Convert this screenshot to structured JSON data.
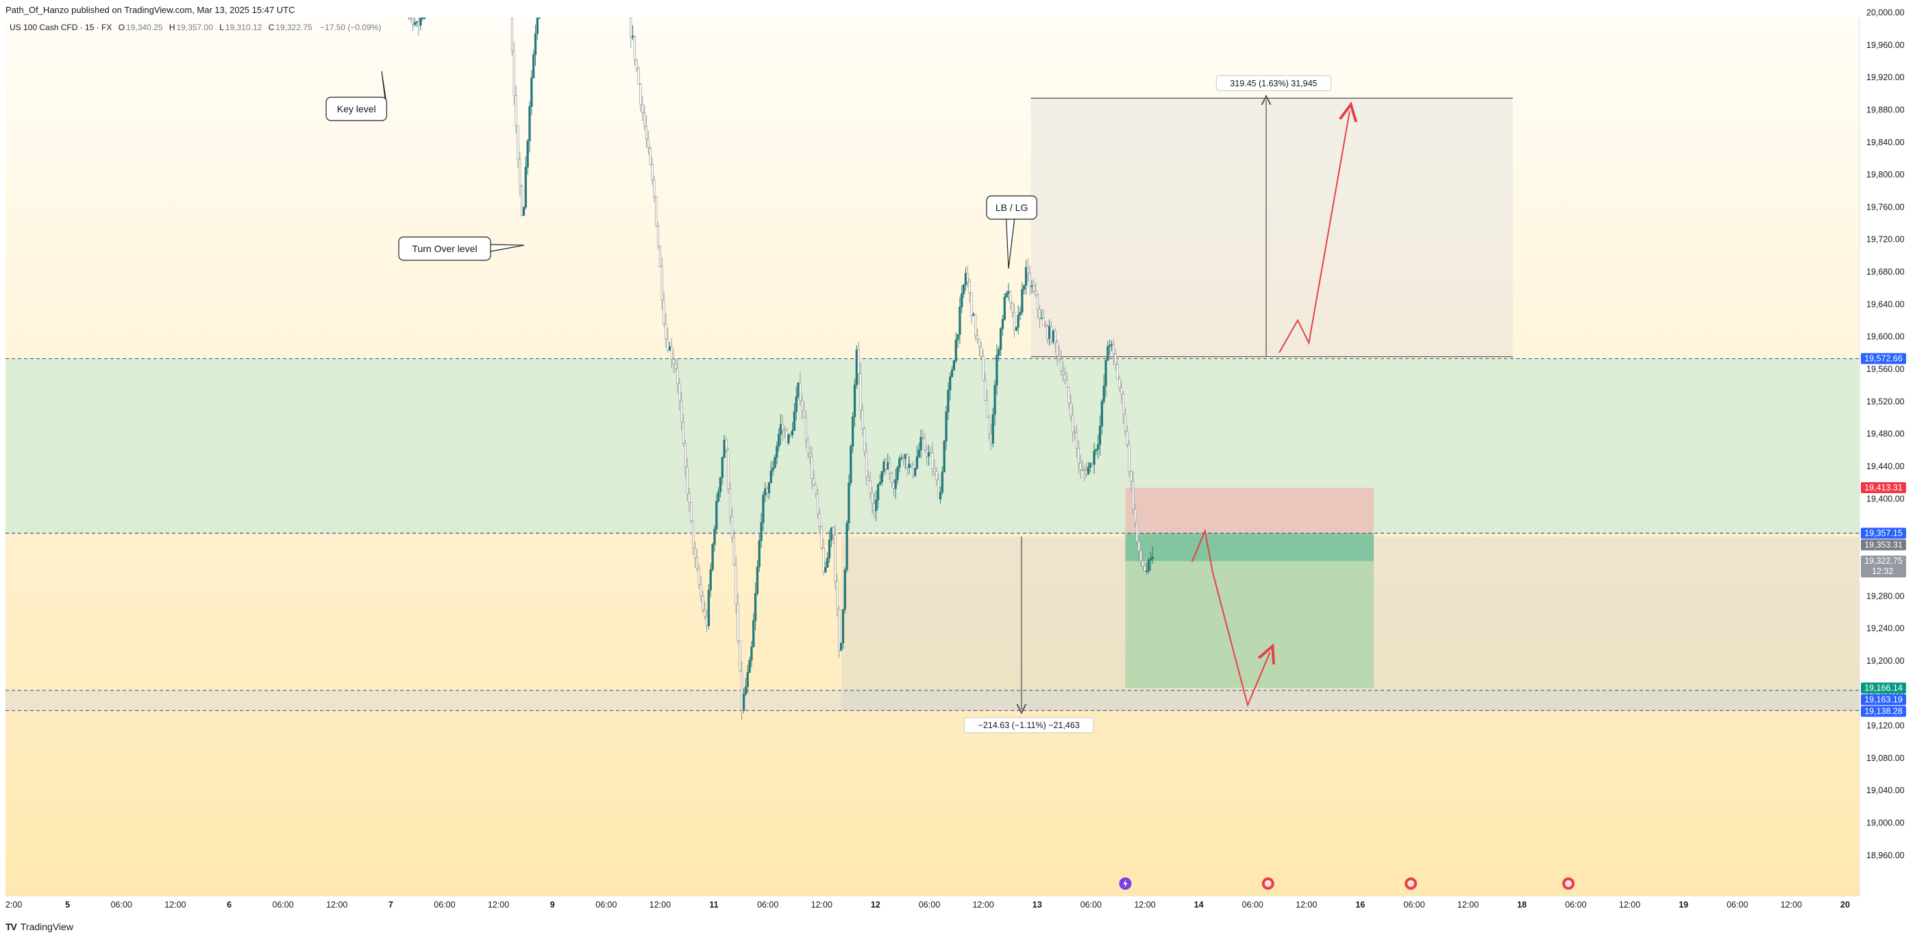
{
  "header": {
    "text": "Path_Of_Hanzo published on TradingView.com, Mar 13, 2025 15:47 UTC"
  },
  "legend": {
    "symbol": "US 100 Cash CFD · 15 · FX",
    "open_label": "O",
    "open": "19,340.25",
    "high_label": "H",
    "high": "19,357.00",
    "low_label": "L",
    "low": "19,310.12",
    "close_label": "C",
    "close": "19,322.75",
    "change": "−17.50 (−0.09%)"
  },
  "footer": {
    "brand": "TradingView",
    "logo": "TV"
  },
  "colors": {
    "bg_top": "#fffaf0",
    "bg_bottom": "#ffe9b8",
    "green_zone": "#d7ecd6",
    "candle_up": "#26787a",
    "candle_down": "#9a9a9a",
    "arrow": "#e8404a",
    "label_blue": "#2962ff",
    "label_red": "#f23645",
    "label_green": "#089981",
    "label_gray": "#787b86"
  },
  "chart_data": {
    "type": "candlestick",
    "y_range": [
      18940,
      20040
    ],
    "y_ticks": [
      "20,000.00",
      "19,960.00",
      "19,920.00",
      "19,880.00",
      "19,840.00",
      "19,800.00",
      "19,760.00",
      "19,720.00",
      "19,680.00",
      "19,640.00",
      "19,600.00",
      "19,560.00",
      "19,520.00",
      "19,480.00",
      "19,440.00",
      "19,400.00",
      "19,360.00",
      "19,320.00",
      "19,280.00",
      "19,240.00",
      "19,200.00",
      "19,160.00",
      "19,120.00",
      "19,080.00",
      "19,040.00",
      "19,000.00",
      "18,960.00"
    ],
    "x_ticks": [
      "2:00",
      "5",
      "06:00",
      "12:00",
      "6",
      "06:00",
      "12:00",
      "7",
      "06:00",
      "12:00",
      "9",
      "06:00",
      "12:00",
      "11",
      "06:00",
      "12:00",
      "12",
      "06:00",
      "12:00",
      "13",
      "06:00",
      "12:00",
      "14",
      "06:00",
      "12:00",
      "16",
      "06:00",
      "12:00",
      "18",
      "06:00",
      "12:00",
      "19",
      "06:00",
      "12:00",
      "20"
    ],
    "price_labels": [
      {
        "text": "19,572.66",
        "value": 19572.66,
        "color": "#2962ff"
      },
      {
        "text": "19,413.31",
        "value": 19413.31,
        "color": "#f23645"
      },
      {
        "text": "19,357.15",
        "value": 19357.15,
        "color": "#2962ff"
      },
      {
        "text": "19,353.31",
        "value": 19353.31,
        "color": "#787b86"
      },
      {
        "text": "19,322.75",
        "sub": "12:32",
        "value": 19322.75,
        "color": "#9598a1"
      },
      {
        "text": "19,166.14",
        "value": 19166.14,
        "color": "#089981"
      },
      {
        "text": "19,163.19",
        "value": 19163.19,
        "color": "#2962ff"
      },
      {
        "text": "19,138.28",
        "value": 19138.28,
        "color": "#2962ff"
      }
    ],
    "zones": [
      {
        "name": "demand-zone",
        "top": 19572.66,
        "bottom": 19357.15
      },
      {
        "name": "low-zone",
        "top": 19163.19,
        "bottom": 19138.28
      }
    ],
    "horizontal_lines": [
      19572.66,
      19357.15,
      19163.19,
      19138.28
    ],
    "measure_up": {
      "text": "319.45 (1.63%) 31,945",
      "from": 19575,
      "to": 19894
    },
    "measure_down": {
      "text": "−214.63 (−1.11%) −21,463",
      "from": 19353,
      "to": 19138
    },
    "position": {
      "entry": 19357.15,
      "stop": 19413.31,
      "target": 19166.14
    },
    "callouts": [
      {
        "text": "Key level"
      },
      {
        "text": "Turn Over level"
      },
      {
        "text": "LB / LG"
      }
    ],
    "candle_path": [
      [
        0.205,
        20200
      ],
      [
        0.213,
        20030
      ],
      [
        0.222,
        19980
      ],
      [
        0.232,
        20060
      ],
      [
        0.265,
        20150
      ],
      [
        0.272,
        20020
      ],
      [
        0.276,
        19820
      ],
      [
        0.279,
        19745
      ],
      [
        0.283,
        19900
      ],
      [
        0.287,
        20010
      ],
      [
        0.295,
        20060
      ],
      [
        0.332,
        20030
      ],
      [
        0.338,
        19970
      ],
      [
        0.344,
        19870
      ],
      [
        0.35,
        19770
      ],
      [
        0.356,
        19600
      ],
      [
        0.362,
        19560
      ],
      [
        0.366,
        19450
      ],
      [
        0.372,
        19320
      ],
      [
        0.378,
        19240
      ],
      [
        0.382,
        19360
      ],
      [
        0.388,
        19480
      ],
      [
        0.393,
        19310
      ],
      [
        0.397,
        19140
      ],
      [
        0.402,
        19200
      ],
      [
        0.408,
        19390
      ],
      [
        0.413,
        19430
      ],
      [
        0.418,
        19490
      ],
      [
        0.423,
        19470
      ],
      [
        0.428,
        19540
      ],
      [
        0.433,
        19460
      ],
      [
        0.437,
        19400
      ],
      [
        0.442,
        19300
      ],
      [
        0.446,
        19380
      ],
      [
        0.45,
        19190
      ],
      [
        0.455,
        19420
      ],
      [
        0.459,
        19580
      ],
      [
        0.464,
        19430
      ],
      [
        0.469,
        19390
      ],
      [
        0.474,
        19450
      ],
      [
        0.479,
        19420
      ],
      [
        0.484,
        19460
      ],
      [
        0.489,
        19430
      ],
      [
        0.494,
        19470
      ],
      [
        0.499,
        19450
      ],
      [
        0.504,
        19400
      ],
      [
        0.508,
        19520
      ],
      [
        0.513,
        19600
      ],
      [
        0.518,
        19680
      ],
      [
        0.522,
        19620
      ],
      [
        0.527,
        19560
      ],
      [
        0.531,
        19460
      ],
      [
        0.535,
        19580
      ],
      [
        0.54,
        19660
      ],
      [
        0.545,
        19600
      ],
      [
        0.55,
        19680
      ],
      [
        0.555,
        19650
      ],
      [
        0.56,
        19610
      ],
      [
        0.565,
        19600
      ],
      [
        0.57,
        19560
      ],
      [
        0.575,
        19500
      ],
      [
        0.58,
        19430
      ],
      [
        0.585,
        19440
      ],
      [
        0.59,
        19480
      ],
      [
        0.595,
        19600
      ],
      [
        0.599,
        19560
      ],
      [
        0.603,
        19510
      ],
      [
        0.607,
        19420
      ],
      [
        0.611,
        19330
      ],
      [
        0.615,
        19310
      ],
      [
        0.619,
        19323
      ]
    ]
  }
}
